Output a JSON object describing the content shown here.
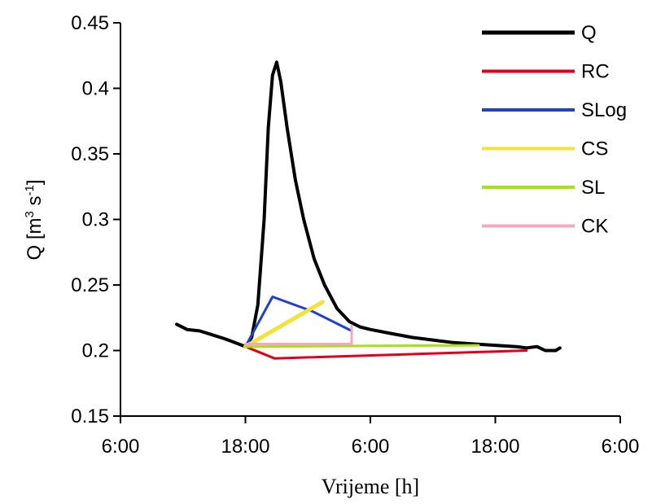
{
  "chart_data": {
    "type": "line",
    "xlabel": "Vrijeme [h]",
    "ylabel_base": "Q [m",
    "ylabel_sup1": "3",
    "ylabel_mid": " s",
    "ylabel_sup2": "-1",
    "ylabel_end": "]",
    "ylim": [
      0.15,
      0.45
    ],
    "xlim": [
      6,
      30
    ],
    "y_ticks": [
      {
        "value": 0.15,
        "label": "0.15"
      },
      {
        "value": 0.2,
        "label": "0.2"
      },
      {
        "value": 0.25,
        "label": "0.25"
      },
      {
        "value": 0.3,
        "label": "0.3"
      },
      {
        "value": 0.35,
        "label": "0.35"
      },
      {
        "value": 0.4,
        "label": "0.4"
      },
      {
        "value": 0.45,
        "label": "0.45"
      }
    ],
    "x_ticks": [
      {
        "value": 6,
        "label": "6:00"
      },
      {
        "value": 12,
        "label": "18:00"
      },
      {
        "value": 18,
        "label": "6:00"
      },
      {
        "value": 24,
        "label": "18:00"
      },
      {
        "value": 30,
        "label": "6:00"
      }
    ],
    "grid": false,
    "legend_position": "top-right",
    "series": [
      {
        "name": "Q",
        "color": "#000000",
        "x": [
          8.7,
          9.2,
          9.8,
          10.4,
          11.0,
          11.5,
          12.0,
          12.3,
          12.6,
          12.9,
          13.1,
          13.3,
          13.5,
          13.7,
          14.0,
          14.4,
          14.8,
          15.3,
          15.8,
          16.4,
          17.0,
          17.5,
          18.0,
          19.0,
          20.0,
          21.0,
          22.0,
          23.0,
          24.0,
          25.0,
          25.5,
          26.0,
          26.4,
          26.9,
          27.1
        ],
        "y": [
          0.22,
          0.216,
          0.215,
          0.212,
          0.209,
          0.206,
          0.203,
          0.21,
          0.235,
          0.3,
          0.37,
          0.41,
          0.42,
          0.405,
          0.37,
          0.33,
          0.3,
          0.27,
          0.25,
          0.232,
          0.222,
          0.218,
          0.216,
          0.213,
          0.21,
          0.208,
          0.206,
          0.205,
          0.204,
          0.203,
          0.202,
          0.203,
          0.2,
          0.2,
          0.202
        ]
      },
      {
        "name": "RC",
        "color": "#e3001b",
        "x": [
          12.0,
          13.4,
          25.5
        ],
        "y": [
          0.203,
          0.194,
          0.2
        ]
      },
      {
        "name": "SLog",
        "color": "#1f3fd6",
        "x": [
          12.0,
          13.3,
          15.2,
          17.1
        ],
        "y": [
          0.203,
          0.241,
          0.23,
          0.215
        ]
      },
      {
        "name": "CS",
        "color": "#f2e23a",
        "x": [
          12.0,
          15.7
        ],
        "y": [
          0.203,
          0.237
        ]
      },
      {
        "name": "SL",
        "color": "#a6e016",
        "x": [
          12.0,
          23.2
        ],
        "y": [
          0.203,
          0.204
        ]
      },
      {
        "name": "CK",
        "color": "#f4a7c2",
        "x": [
          12.0,
          17.1,
          17.1
        ],
        "y": [
          0.205,
          0.205,
          0.219
        ]
      }
    ]
  }
}
